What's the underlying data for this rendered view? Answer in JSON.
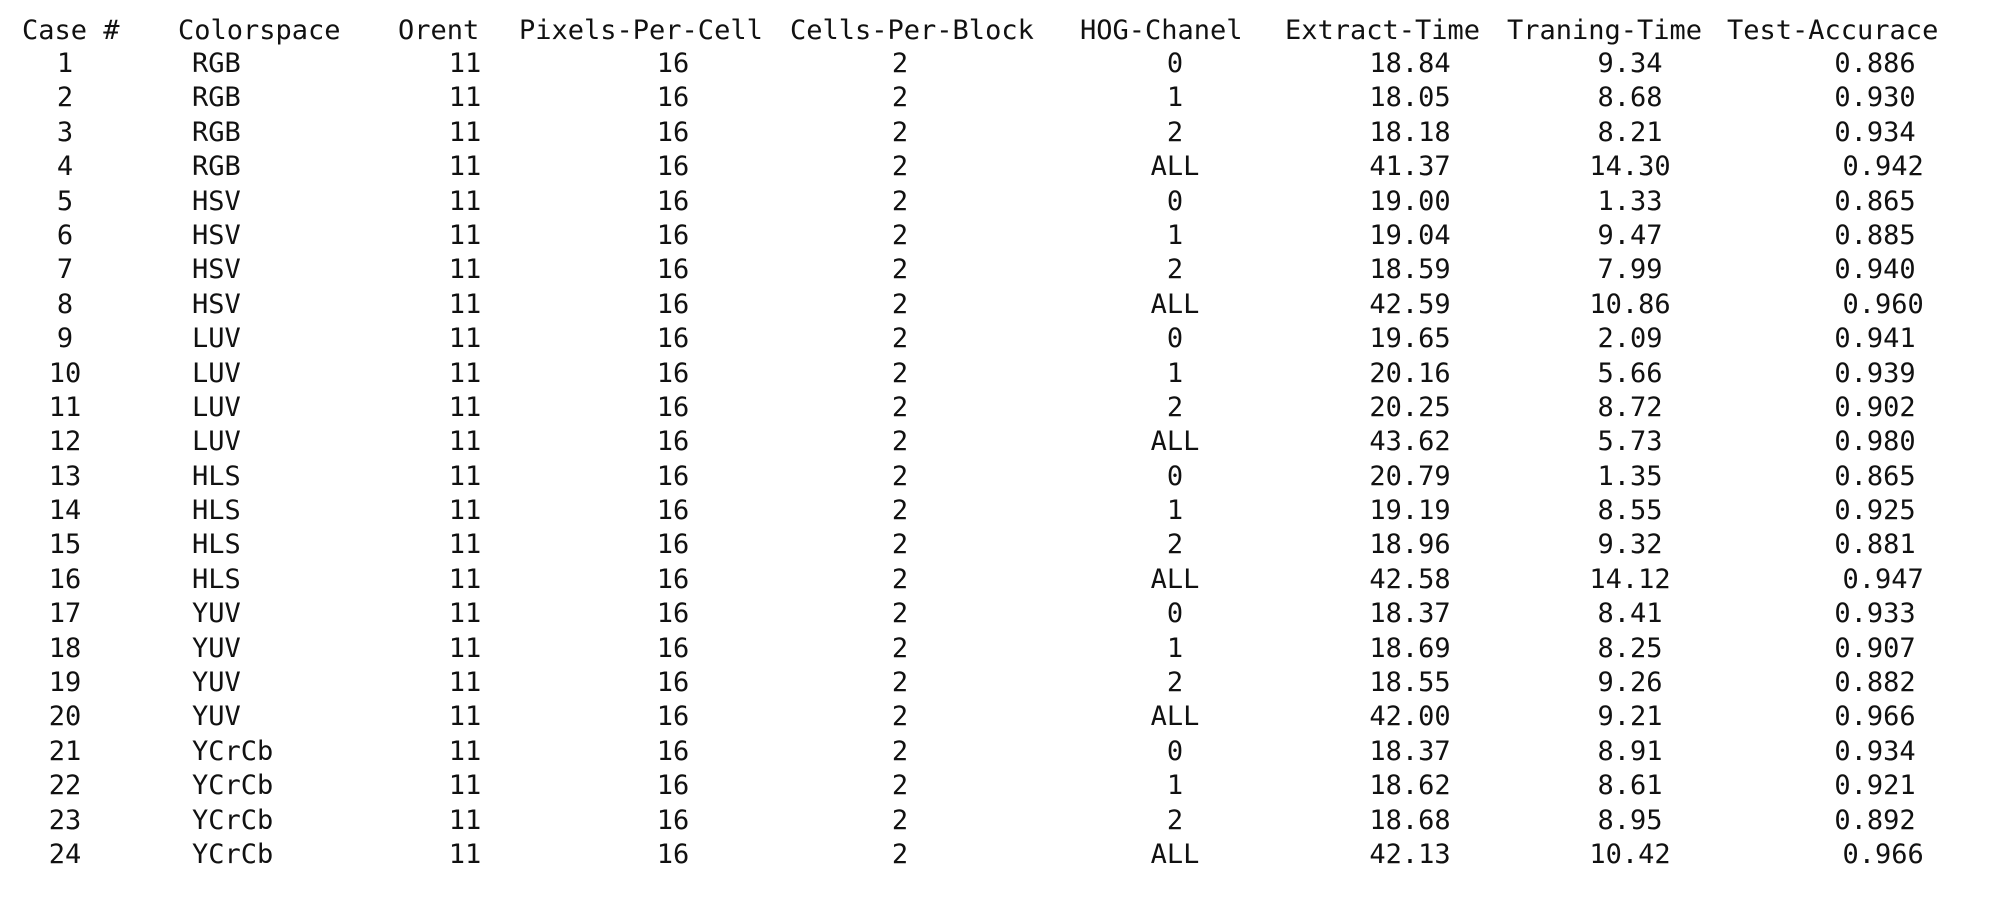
{
  "table": {
    "columns": [
      "Case #",
      "Colorspace",
      "Orent",
      "Pixels-Per-Cell",
      "Cells-Per-Block",
      "HOG-Chanel",
      "Extract-Time",
      "Traning-Time",
      "Test-Accurace"
    ],
    "rows": [
      [
        "1",
        "RGB",
        "11",
        "16",
        "2",
        "0",
        "18.84",
        "9.34",
        "0.886"
      ],
      [
        "2",
        "RGB",
        "11",
        "16",
        "2",
        "1",
        "18.05",
        "8.68",
        "0.930"
      ],
      [
        "3",
        "RGB",
        "11",
        "16",
        "2",
        "2",
        "18.18",
        "8.21",
        "0.934"
      ],
      [
        "4",
        "RGB",
        "11",
        "16",
        "2",
        "ALL",
        "41.37",
        "14.30",
        " 0.942"
      ],
      [
        "5",
        "HSV",
        "11",
        "16",
        "2",
        "0",
        "19.00",
        "1.33",
        "0.865"
      ],
      [
        "6",
        "HSV",
        "11",
        "16",
        "2",
        "1",
        "19.04",
        "9.47",
        "0.885"
      ],
      [
        "7",
        "HSV",
        "11",
        "16",
        "2",
        "2",
        "18.59",
        "7.99",
        "0.940"
      ],
      [
        "8",
        "HSV",
        "11",
        "16",
        "2",
        "ALL",
        "42.59",
        "10.86",
        " 0.960"
      ],
      [
        "9",
        "LUV",
        "11",
        "16",
        "2",
        "0",
        "19.65",
        "2.09",
        "0.941"
      ],
      [
        "10",
        "LUV",
        "11",
        "16",
        "2",
        "1",
        "20.16",
        "5.66",
        "0.939"
      ],
      [
        "11",
        "LUV",
        "11",
        "16",
        "2",
        "2",
        "20.25",
        "8.72",
        "0.902"
      ],
      [
        "12",
        "LUV",
        "11",
        "16",
        "2",
        "ALL",
        "43.62",
        "5.73",
        "0.980"
      ],
      [
        "13",
        "HLS",
        "11",
        "16",
        "2",
        "0",
        "20.79",
        "1.35",
        "0.865"
      ],
      [
        "14",
        "HLS",
        "11",
        "16",
        "2",
        "1",
        "19.19",
        "8.55",
        "0.925"
      ],
      [
        "15",
        "HLS",
        "11",
        "16",
        "2",
        "2",
        "18.96",
        "9.32",
        "0.881"
      ],
      [
        "16",
        "HLS",
        "11",
        "16",
        "2",
        "ALL",
        "42.58",
        "14.12",
        " 0.947"
      ],
      [
        "17",
        "YUV",
        "11",
        "16",
        "2",
        "0",
        "18.37",
        "8.41",
        "0.933"
      ],
      [
        "18",
        "YUV",
        "11",
        "16",
        "2",
        "1",
        "18.69",
        "8.25",
        "0.907"
      ],
      [
        "19",
        "YUV",
        "11",
        "16",
        "2",
        "2",
        "18.55",
        "9.26",
        "0.882"
      ],
      [
        "20",
        "YUV",
        "11",
        "16",
        "2",
        "ALL",
        "42.00",
        "9.21",
        "0.966"
      ],
      [
        "21",
        "YCrCb",
        "11",
        "16",
        "2",
        "0",
        "18.37",
        "8.91",
        "0.934"
      ],
      [
        "22",
        "YCrCb",
        "11",
        "16",
        "2",
        "1",
        "18.62",
        "8.61",
        "0.921"
      ],
      [
        "23",
        "YCrCb",
        "11",
        "16",
        "2",
        "2",
        "18.68",
        "8.95",
        "0.892"
      ],
      [
        "24",
        "YCrCb",
        "11",
        "16",
        "2",
        "ALL",
        "42.13",
        "10.42",
        " 0.966"
      ]
    ]
  }
}
